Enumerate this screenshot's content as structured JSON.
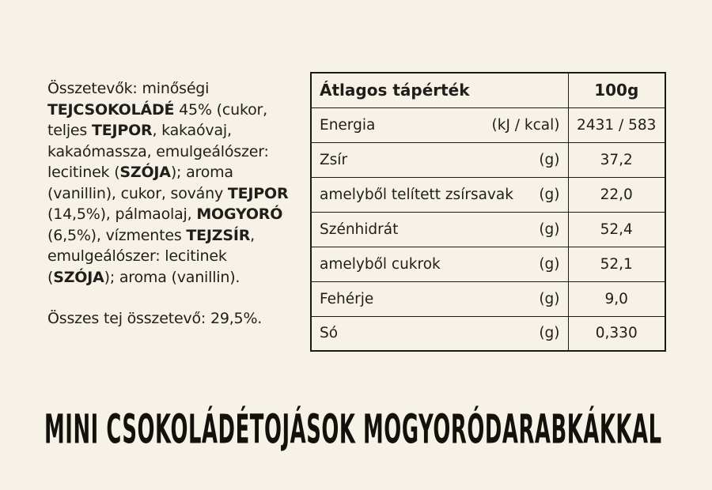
{
  "colors": {
    "bg": "#f7f2e8",
    "ink": "#201d1a",
    "line": "#1b1917"
  },
  "ingredients": {
    "segments": [
      {
        "t": "Összetevők: minőségi "
      },
      {
        "t": "TEJCSOKOLÁDÉ",
        "b": true
      },
      {
        "t": " 45% (cukor, teljes "
      },
      {
        "t": "TEJPOR",
        "b": true
      },
      {
        "t": ", kakaóvaj, kakaómassza, emulgeálószer: lecitinek ("
      },
      {
        "t": "SZÓJA",
        "b": true
      },
      {
        "t": "); aroma (vanillin), cukor, sovány "
      },
      {
        "t": "TEJPOR",
        "b": true
      },
      {
        "t": " (14,5%), pálmaolaj, "
      },
      {
        "t": "MOGYORÓ",
        "b": true
      },
      {
        "t": " (6,5%), vízmentes "
      },
      {
        "t": "TEJZSÍR",
        "b": true
      },
      {
        "t": ", emulgeálószer: lecitinek ("
      },
      {
        "t": "SZÓJA",
        "b": true
      },
      {
        "t": "); aroma (vanillin)."
      }
    ],
    "milk_total": "Összes tej összetevő: 29,5%."
  },
  "nutrition_table": {
    "header": {
      "title": "Átlagos tápérték",
      "amount_label": "100g"
    },
    "rows": [
      {
        "label": "Energia",
        "unit": "(kJ / kcal)",
        "value": "2431 / 583"
      },
      {
        "label": "Zsír",
        "unit": "(g)",
        "value": "37,2"
      },
      {
        "label": "amelyből telített zsírsavak",
        "unit": "(g)",
        "value": "22,0"
      },
      {
        "label": "Szénhidrát",
        "unit": "(g)",
        "value": "52,4"
      },
      {
        "label": "amelyből cukrok",
        "unit": "(g)",
        "value": "52,1"
      },
      {
        "label": "Fehérje",
        "unit": "(g)",
        "value": "9,0"
      },
      {
        "label": "Só",
        "unit": "(g)",
        "value": "0,330"
      }
    ]
  },
  "product_title": "MINI CSOKOLÁDÉTOJÁSOK MOGYORÓDARABKÁKKAL"
}
